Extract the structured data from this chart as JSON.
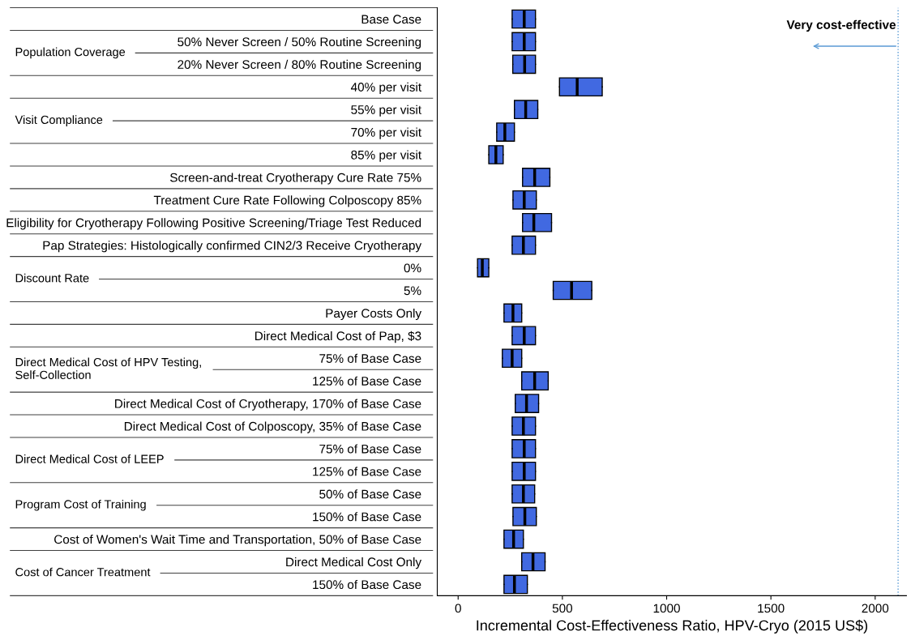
{
  "chart_data": {
    "type": "box",
    "orientation": "horizontal",
    "xlabel": "Incremental Cost-Effectiveness Ratio, HPV-Cryo (2015 US$)",
    "categories": [
      "Base Case",
      "50% Never Screen / 50% Routine Screening",
      "20% Never Screen / 80% Routine Screening",
      "40% per visit",
      "55% per visit",
      "70% per visit",
      "85% per visit",
      "Screen-and-treat Cryotherapy Cure Rate 75%",
      "Treatment Cure Rate Following Colposcopy 85%",
      "Eligibility for Cryotherapy Following Positive Screening/Triage Test Reduced",
      "Pap Strategies: Histologically confirmed CIN2/3 Receive Cryotherapy",
      "0%",
      "5%",
      "Payer Costs Only",
      "Direct Medical Cost of Pap, $3",
      "75% of Base Case",
      "125% of Base Case",
      "Direct Medical Cost of Cryotherapy, 170% of Base Case",
      "Direct Medical Cost of Colposcopy, 35% of Base Case",
      "75% of Base Case",
      "125% of Base Case",
      "50% of Base Case",
      "150% of Base Case",
      "Cost of Women's Wait Time and Transportation, 50% of Base Case",
      "Direct Medical Cost Only",
      "150% of Base Case"
    ],
    "y2_categories": [
      null,
      "Population Coverage",
      null,
      null,
      "Visit Compliance",
      null,
      null,
      null,
      null,
      null,
      null,
      "Discount Rate",
      null,
      null,
      null,
      "Direct Medical Cost of HPV Testing,\nSelf-Collection",
      null,
      null,
      null,
      "Direct Medical Cost of LEEP",
      null,
      "Program Cost of Training",
      null,
      null,
      "Cost of Cancer Treatment",
      null
    ],
    "color": "#4169e1",
    "boxes": [
      {
        "low": 259,
        "q1": 259,
        "median": 317,
        "q3": 371,
        "high": 371
      },
      {
        "low": 259,
        "q1": 259,
        "median": 317,
        "q3": 371,
        "high": 371
      },
      {
        "low": 262,
        "q1": 262,
        "median": 319,
        "q3": 371,
        "high": 371
      },
      {
        "low": 486,
        "q1": 486,
        "median": 571,
        "q3": 691,
        "high": 691
      },
      {
        "low": 270,
        "q1": 270,
        "median": 324,
        "q3": 382,
        "high": 382
      },
      {
        "low": 185,
        "q1": 185,
        "median": 224,
        "q3": 270,
        "high": 270
      },
      {
        "low": 147,
        "q1": 147,
        "median": 181,
        "q3": 216,
        "high": 216
      },
      {
        "low": 309,
        "q1": 309,
        "median": 367,
        "q3": 440,
        "high": 440
      },
      {
        "low": 263,
        "q1": 263,
        "median": 317,
        "q3": 375,
        "high": 375
      },
      {
        "low": 309,
        "q1": 309,
        "median": 363,
        "q3": 448,
        "high": 448
      },
      {
        "low": 259,
        "q1": 259,
        "median": 313,
        "q3": 371,
        "high": 371
      },
      {
        "low": 93,
        "q1": 93,
        "median": 116,
        "q3": 147,
        "high": 147
      },
      {
        "low": 456,
        "q1": 456,
        "median": 544,
        "q3": 641,
        "high": 641
      },
      {
        "low": 220,
        "q1": 220,
        "median": 263,
        "q3": 305,
        "high": 305
      },
      {
        "low": 259,
        "q1": 259,
        "median": 317,
        "q3": 371,
        "high": 371
      },
      {
        "low": 212,
        "q1": 212,
        "median": 259,
        "q3": 305,
        "high": 305
      },
      {
        "low": 305,
        "q1": 305,
        "median": 367,
        "q3": 432,
        "high": 432
      },
      {
        "low": 274,
        "q1": 274,
        "median": 328,
        "q3": 386,
        "high": 386
      },
      {
        "low": 259,
        "q1": 259,
        "median": 313,
        "q3": 371,
        "high": 371
      },
      {
        "low": 259,
        "q1": 259,
        "median": 317,
        "q3": 371,
        "high": 371
      },
      {
        "low": 259,
        "q1": 259,
        "median": 317,
        "q3": 371,
        "high": 371
      },
      {
        "low": 259,
        "q1": 259,
        "median": 313,
        "q3": 367,
        "high": 367
      },
      {
        "low": 263,
        "q1": 263,
        "median": 320,
        "q3": 375,
        "high": 375
      },
      {
        "low": 220,
        "q1": 220,
        "median": 266,
        "q3": 313,
        "high": 313
      },
      {
        "low": 305,
        "q1": 305,
        "median": 359,
        "q3": 417,
        "high": 417
      },
      {
        "low": 220,
        "q1": 220,
        "median": 270,
        "q3": 332,
        "high": 332
      }
    ],
    "xlim": [
      -100,
      2150
    ],
    "xticks": [
      0,
      500,
      1000,
      1500,
      2000
    ],
    "ref_lines": [
      {
        "axis": "x",
        "value": 2110,
        "label": "Very cost-effective",
        "color": "#5b9bd5",
        "line_style": "dotted"
      }
    ],
    "grid": false,
    "legend": false
  }
}
